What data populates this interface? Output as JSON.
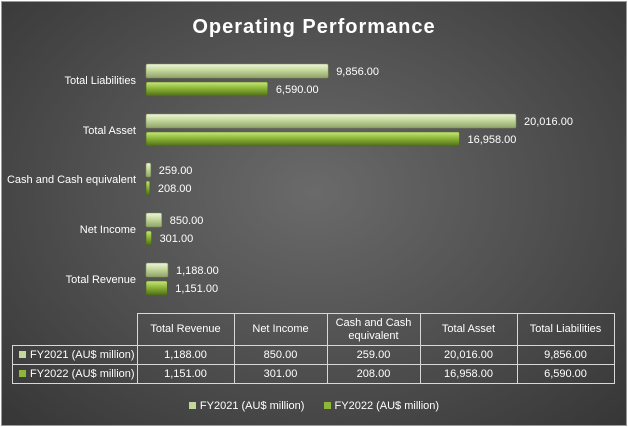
{
  "chart_data": {
    "type": "bar",
    "orientation": "horizontal",
    "title": "Operating Performance",
    "categories": [
      "Total Revenue",
      "Net Income",
      "Cash and Cash equivalent",
      "Total Asset",
      "Total Liabilities"
    ],
    "series": [
      {
        "name": "FY2021 (AU$ million)",
        "values": [
          1188,
          850,
          259,
          20016,
          9856
        ],
        "labels": [
          "1,188.00",
          "850.00",
          "259.00",
          "20,016.00",
          "9,856.00"
        ],
        "color": "#c4d79b"
      },
      {
        "name": "FY2022 (AU$ million)",
        "values": [
          1151,
          301,
          208,
          16958,
          6590
        ],
        "labels": [
          "1,151.00",
          "301.00",
          "208.00",
          "16,958.00",
          "6,590.00"
        ],
        "color": "#8db63a"
      }
    ],
    "xlim": [
      0,
      20016
    ],
    "data_table": true,
    "legend": "bottom"
  },
  "table": {
    "headers": [
      "Total Revenue",
      "Net Income",
      "Cash and Cash equivalent",
      "Total Asset",
      "Total Liabilities"
    ]
  }
}
